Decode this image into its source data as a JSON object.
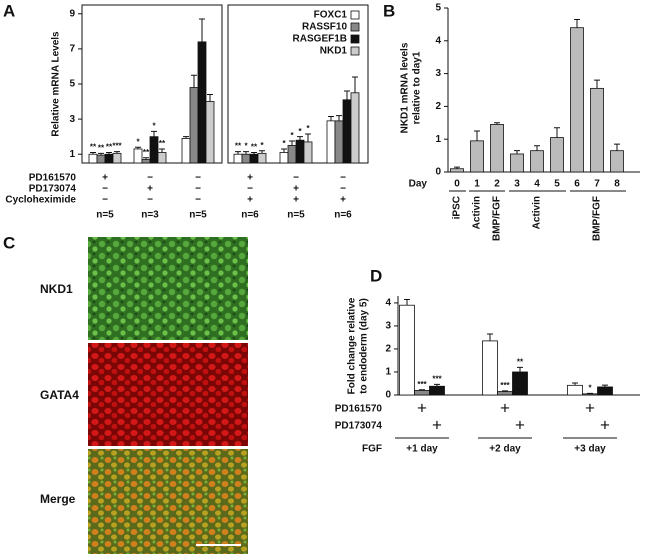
{
  "chart_data": [
    {
      "type": "bar",
      "panel_label": "A",
      "ylabel": "Relative mRNA Levels",
      "ylim": [
        0.5,
        9.5
      ],
      "yticks": [
        1,
        3,
        5,
        7,
        9
      ],
      "categories": [
        null,
        null,
        null,
        null,
        null,
        null
      ],
      "series": [
        {
          "name": "FOXC1",
          "color": "#ffffff",
          "values": [
            1.0,
            1.3,
            1.9,
            1.0,
            1.1,
            2.9
          ],
          "errors": [
            0.1,
            0.1,
            0.1,
            0.15,
            0.2,
            0.25
          ],
          "annotations": [
            "**",
            "*",
            null,
            "**",
            "*",
            null
          ]
        },
        {
          "name": "RASSF10",
          "color": "#888888",
          "values": [
            0.95,
            0.7,
            4.8,
            1.0,
            1.5,
            2.9
          ],
          "errors": [
            0.1,
            0.1,
            0.7,
            0.15,
            0.25,
            0.3
          ],
          "annotations": [
            "**",
            "**",
            null,
            "*",
            "*",
            null
          ]
        },
        {
          "name": "RASGEF1B",
          "color": "#111111",
          "values": [
            1.0,
            2.0,
            7.4,
            1.0,
            1.8,
            4.1
          ],
          "errors": [
            0.1,
            0.3,
            1.3,
            0.1,
            0.2,
            0.5
          ],
          "annotations": [
            "**",
            "*",
            null,
            "**",
            "*",
            null
          ]
        },
        {
          "name": "NKD1",
          "color": "#cccccc",
          "values": [
            1.05,
            1.1,
            4.0,
            1.05,
            1.7,
            4.5
          ],
          "errors": [
            0.1,
            0.2,
            0.4,
            0.15,
            0.45,
            0.9
          ],
          "annotations": [
            "***",
            "**",
            null,
            "*",
            "*",
            null
          ]
        }
      ],
      "treatments": [
        {
          "name": "PD161570",
          "signs": [
            "+",
            "−",
            "−",
            "+",
            "−",
            "−"
          ]
        },
        {
          "name": "PD173074",
          "signs": [
            "−",
            "+",
            "−",
            "−",
            "+",
            "−"
          ]
        },
        {
          "name": "Cycloheximide",
          "signs": [
            "−",
            "−",
            "−",
            "+",
            "+",
            "+"
          ]
        }
      ],
      "n": [
        "n=5",
        "n=3",
        "n=5",
        "n=6",
        "n=5",
        "n=6"
      ]
    },
    {
      "type": "bar",
      "panel_label": "B",
      "ylabel": [
        "NKD1 mRNA levels",
        "relative to day1"
      ],
      "ylim": [
        0,
        5
      ],
      "yticks": [
        0,
        1,
        2,
        3,
        4,
        5
      ],
      "xlabel": "Day",
      "categories": [
        "0",
        "1",
        "2",
        "3",
        "4",
        "5",
        "6",
        "7",
        "8"
      ],
      "values": [
        0.1,
        0.95,
        1.45,
        0.55,
        0.65,
        1.05,
        4.4,
        2.55,
        0.65
      ],
      "errors": [
        0.05,
        0.3,
        0.05,
        0.1,
        0.15,
        0.3,
        0.25,
        0.25,
        0.2
      ],
      "color": "#bbbbbb",
      "phase_labels": [
        "iPSC",
        "Activin",
        "BMP/FGF",
        null,
        "Activin",
        null,
        null,
        "BMP/FGF",
        null
      ]
    },
    {
      "type": "bar",
      "panel_label": "D",
      "ylabel": [
        "Fold change relative",
        "to endoderm (day 5)"
      ],
      "ylim": [
        0,
        4.3
      ],
      "yticks": [
        0,
        1,
        2,
        3,
        4
      ],
      "categories": [
        "+1 day",
        "+2 day",
        "+3 day"
      ],
      "category_row_label": "FGF",
      "series": [
        {
          "color": "#ffffff",
          "values": [
            3.9,
            2.35,
            0.42
          ],
          "errors": [
            0.25,
            0.3,
            0.1
          ],
          "annotations": [
            null,
            null,
            null
          ]
        },
        {
          "color": "#888888",
          "values": [
            0.2,
            0.15,
            0.05
          ],
          "errors": [
            0.03,
            0.03,
            0.02
          ],
          "annotations": [
            "***",
            "***",
            "*"
          ]
        },
        {
          "color": "#111111",
          "values": [
            0.38,
            1.0,
            0.35
          ],
          "errors": [
            0.08,
            0.2,
            0.08
          ],
          "annotations": [
            "***",
            "**",
            null
          ]
        }
      ],
      "treatments": [
        {
          "name": "PD161570",
          "signs": [
            "+",
            "+",
            "+"
          ]
        },
        {
          "name": "PD173074",
          "signs": [
            "+",
            "+",
            "+"
          ]
        }
      ]
    }
  ],
  "image_panel": {
    "label": "C",
    "rows": [
      "NKD1",
      "GATA4",
      "Merge"
    ]
  }
}
